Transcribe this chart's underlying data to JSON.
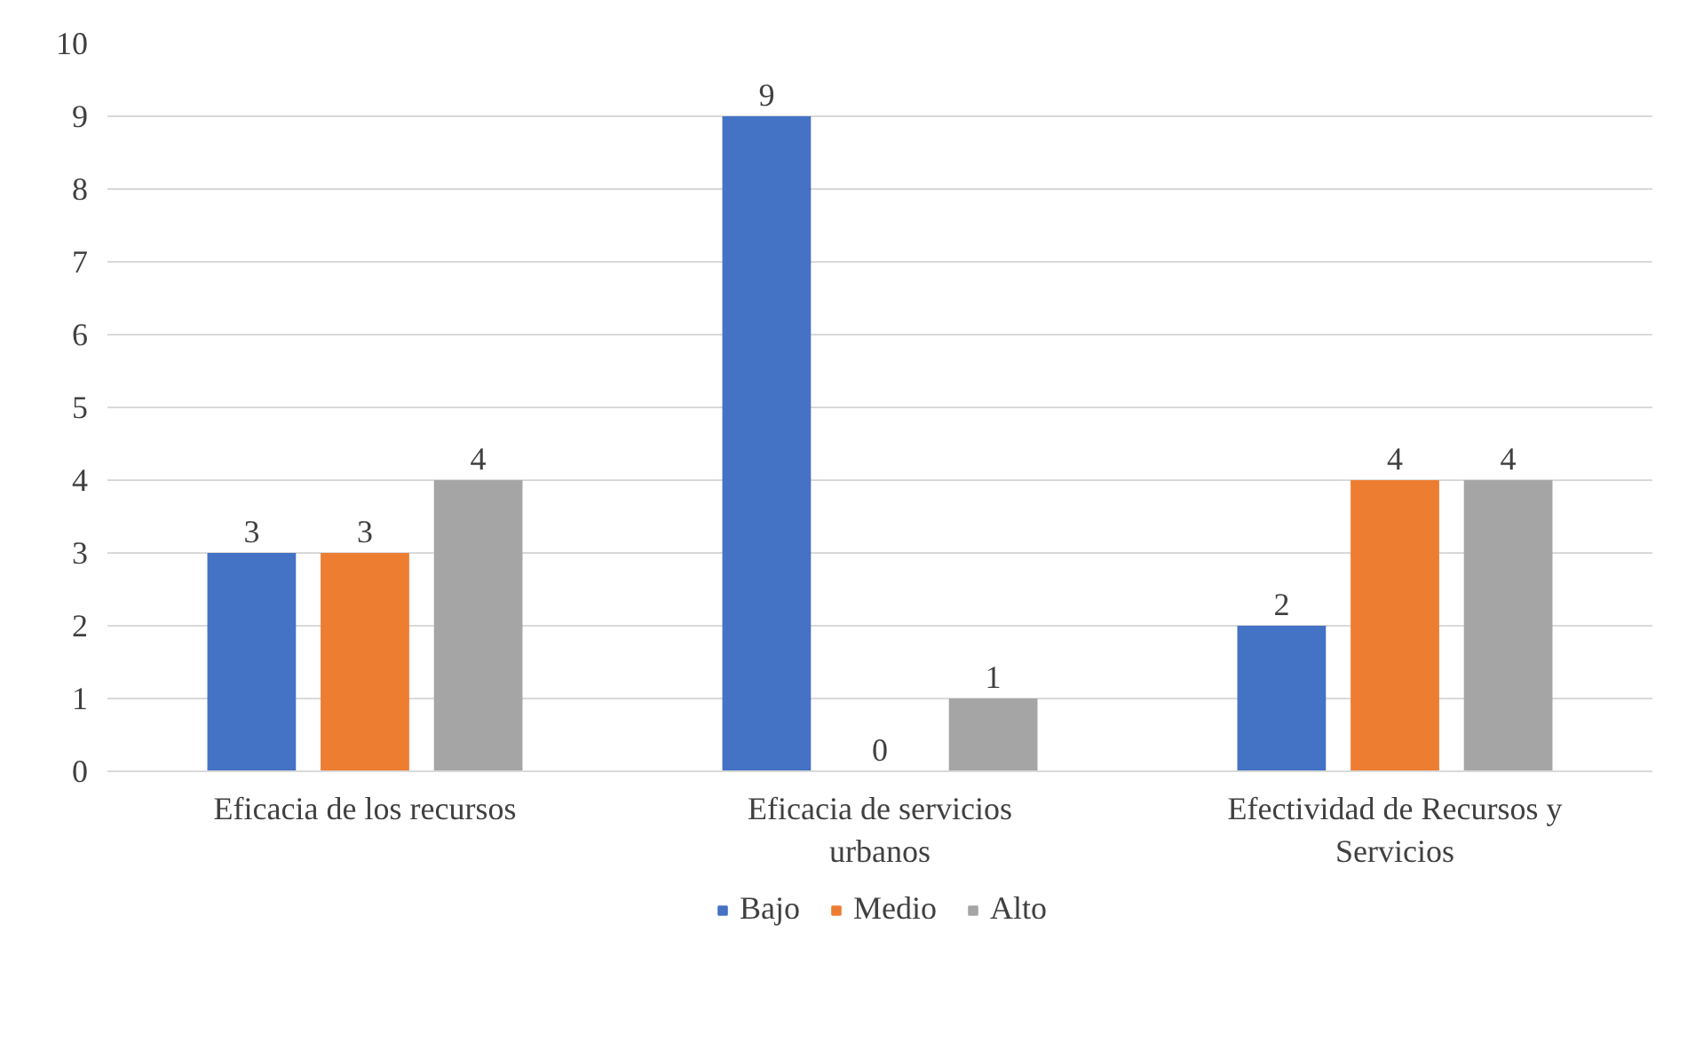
{
  "chart_data": {
    "type": "bar",
    "categories": [
      "Eficacia de los recursos",
      "Eficacia de servicios urbanos",
      "Efectividad de Recursos y Servicios"
    ],
    "series": [
      {
        "name": "Bajo",
        "color": "#4472c4",
        "values": [
          3,
          9,
          2
        ]
      },
      {
        "name": "Medio",
        "color": "#ed7d31",
        "values": [
          3,
          0,
          4
        ]
      },
      {
        "name": "Alto",
        "color": "#a5a5a5",
        "values": [
          4,
          1,
          4
        ]
      }
    ],
    "ylim": [
      0,
      10
    ],
    "yticks": [
      0,
      1,
      2,
      3,
      4,
      5,
      6,
      7,
      8,
      9,
      10
    ],
    "grid": "y",
    "legend": "bottom",
    "data_labels": true
  }
}
